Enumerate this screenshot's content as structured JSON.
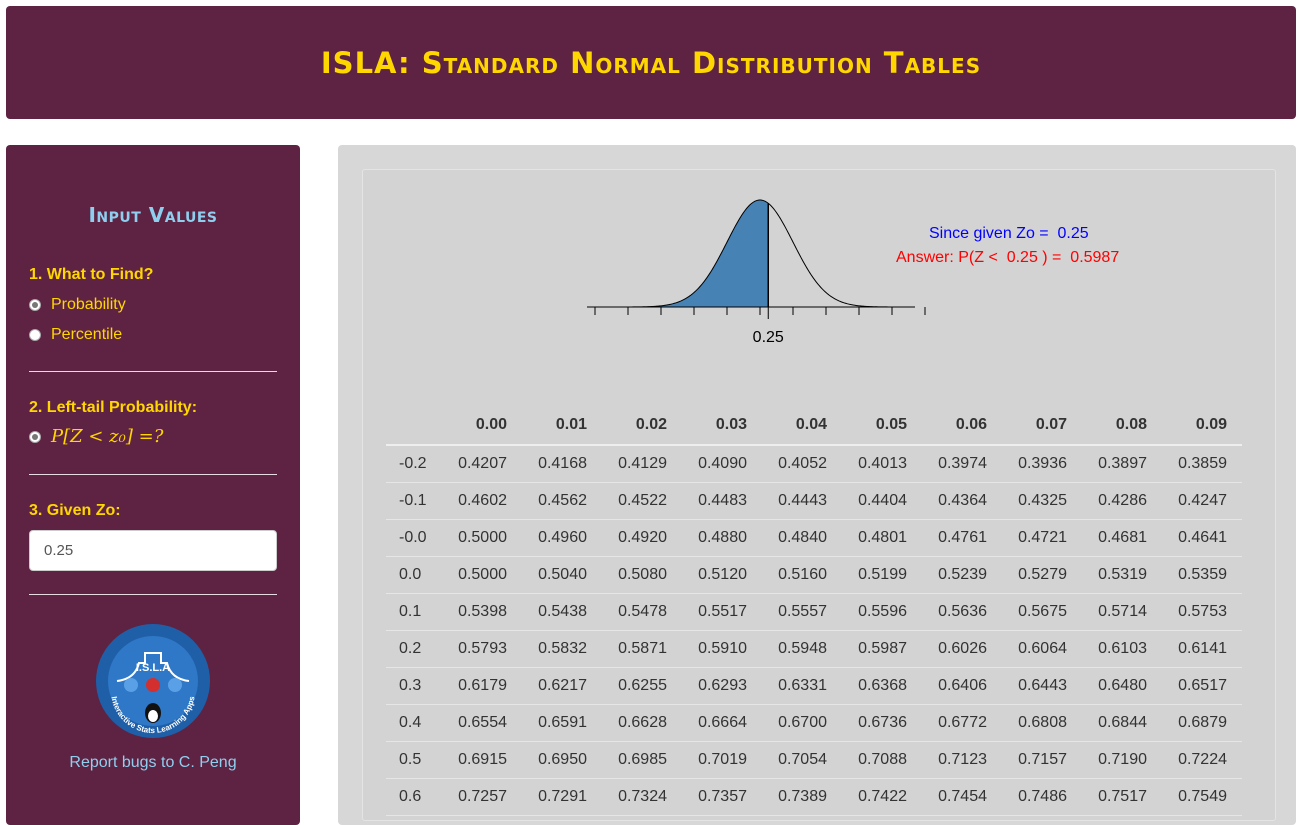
{
  "header": {
    "title": "ISLA: Standard Normal Distribution Tables"
  },
  "sidebar": {
    "heading": "Input Values",
    "q1_label": "1. What to Find?",
    "options": [
      {
        "label": "Probability",
        "selected": true
      },
      {
        "label": "Percentile",
        "selected": false
      }
    ],
    "q2_label": "2. Left-tail Probability:",
    "q2_option": {
      "math": "P[Z < z₀] =?",
      "selected": true
    },
    "q3_label": "3. Given Zo:",
    "zo_value": "0.25",
    "logo": {
      "text": "I.S.L.A",
      "arc_text": "Interactive Stats Learning Apps"
    },
    "report_link": "Report bugs to C. Peng"
  },
  "plot": {
    "z_label": "0.25",
    "z_value": 0.25,
    "shade": "left-tail",
    "shade_color": "#4682b4",
    "answer_line1": "Since given Zo =  0.25",
    "answer_line2": "Answer: P(Z <  0.25 ) =  0.5987"
  },
  "table": {
    "columns": [
      "0.00",
      "0.01",
      "0.02",
      "0.03",
      "0.04",
      "0.05",
      "0.06",
      "0.07",
      "0.08",
      "0.09"
    ],
    "rows": [
      {
        "z": "-0.2",
        "values": [
          "0.4207",
          "0.4168",
          "0.4129",
          "0.4090",
          "0.4052",
          "0.4013",
          "0.3974",
          "0.3936",
          "0.3897",
          "0.3859"
        ]
      },
      {
        "z": "-0.1",
        "values": [
          "0.4602",
          "0.4562",
          "0.4522",
          "0.4483",
          "0.4443",
          "0.4404",
          "0.4364",
          "0.4325",
          "0.4286",
          "0.4247"
        ]
      },
      {
        "z": "-0.0",
        "values": [
          "0.5000",
          "0.4960",
          "0.4920",
          "0.4880",
          "0.4840",
          "0.4801",
          "0.4761",
          "0.4721",
          "0.4681",
          "0.4641"
        ]
      },
      {
        "z": "0.0",
        "values": [
          "0.5000",
          "0.5040",
          "0.5080",
          "0.5120",
          "0.5160",
          "0.5199",
          "0.5239",
          "0.5279",
          "0.5319",
          "0.5359"
        ]
      },
      {
        "z": "0.1",
        "values": [
          "0.5398",
          "0.5438",
          "0.5478",
          "0.5517",
          "0.5557",
          "0.5596",
          "0.5636",
          "0.5675",
          "0.5714",
          "0.5753"
        ]
      },
      {
        "z": "0.2",
        "values": [
          "0.5793",
          "0.5832",
          "0.5871",
          "0.5910",
          "0.5948",
          "0.5987",
          "0.6026",
          "0.6064",
          "0.6103",
          "0.6141"
        ]
      },
      {
        "z": "0.3",
        "values": [
          "0.6179",
          "0.6217",
          "0.6255",
          "0.6293",
          "0.6331",
          "0.6368",
          "0.6406",
          "0.6443",
          "0.6480",
          "0.6517"
        ]
      },
      {
        "z": "0.4",
        "values": [
          "0.6554",
          "0.6591",
          "0.6628",
          "0.6664",
          "0.6700",
          "0.6736",
          "0.6772",
          "0.6808",
          "0.6844",
          "0.6879"
        ]
      },
      {
        "z": "0.5",
        "values": [
          "0.6915",
          "0.6950",
          "0.6985",
          "0.7019",
          "0.7054",
          "0.7088",
          "0.7123",
          "0.7157",
          "0.7190",
          "0.7224"
        ]
      },
      {
        "z": "0.6",
        "values": [
          "0.7257",
          "0.7291",
          "0.7324",
          "0.7357",
          "0.7389",
          "0.7422",
          "0.7454",
          "0.7486",
          "0.7517",
          "0.7549"
        ]
      }
    ]
  },
  "colors": {
    "header_bg": "#5e2342",
    "title_gold": "#ffd700",
    "heading_blue": "#8ecfef",
    "panel_gray": "#d3d3d3",
    "answer_blue": "#0000ff",
    "answer_red": "#ff0000"
  }
}
